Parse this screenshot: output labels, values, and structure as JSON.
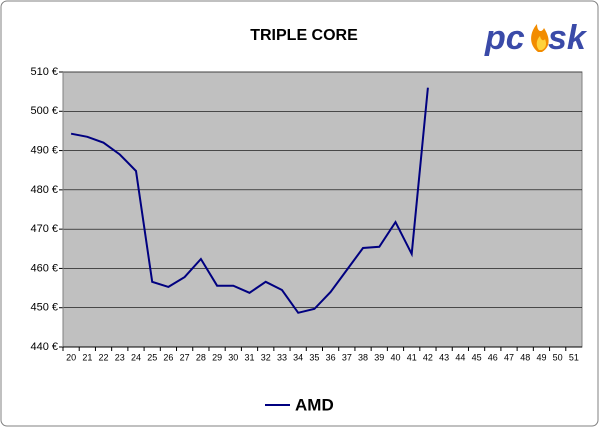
{
  "chart_data": {
    "type": "line",
    "title": "TRIPLE CORE",
    "logo": [
      "pc",
      "sk"
    ],
    "categories": [
      "20",
      "21",
      "22",
      "23",
      "24",
      "25",
      "26",
      "27",
      "28",
      "29",
      "30",
      "31",
      "32",
      "33",
      "34",
      "35",
      "36",
      "37",
      "38",
      "39",
      "40",
      "41",
      "42",
      "43",
      "44",
      "45",
      "46",
      "47",
      "48",
      "49",
      "50",
      "51"
    ],
    "series": [
      {
        "name": "AMD",
        "color": "#000080",
        "values": [
          494.3,
          493.5,
          492,
          489,
          484.8,
          456.6,
          455.3,
          457.8,
          462.4,
          455.6,
          455.6,
          453.8,
          456.6,
          454.5,
          448.7,
          449.7,
          454,
          459.6,
          465.2,
          465.5,
          471.8,
          463.7,
          506,
          null,
          null,
          null,
          null,
          null,
          null,
          null,
          null,
          null
        ]
      }
    ],
    "ylim": [
      440,
      510
    ],
    "yticks": [
      {
        "value": 440,
        "label": "440 €"
      },
      {
        "value": 450,
        "label": "450 €"
      },
      {
        "value": 460,
        "label": "460 €"
      },
      {
        "value": 470,
        "label": "470 €"
      },
      {
        "value": 480,
        "label": "480 €"
      },
      {
        "value": 490,
        "label": "490 €"
      },
      {
        "value": 500,
        "label": "500 €"
      },
      {
        "value": 510,
        "label": "510 €"
      }
    ],
    "grid": true,
    "legend": "bottom",
    "plot_background": "#c0c0c0"
  }
}
